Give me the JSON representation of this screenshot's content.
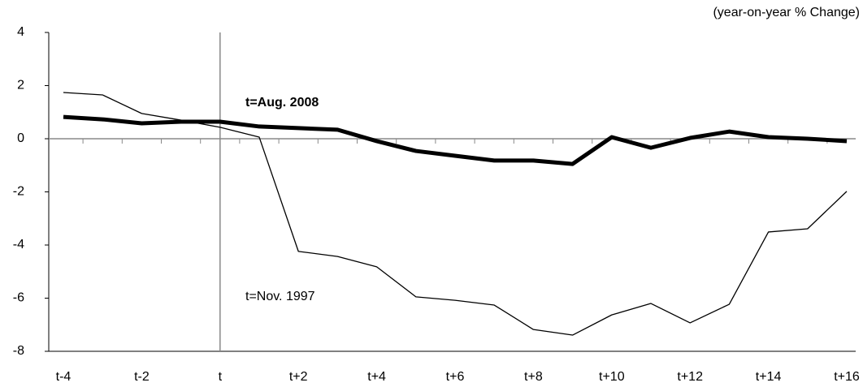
{
  "chart_data": {
    "type": "line",
    "unit_label": "(year-on-year % Change)",
    "categories": [
      "t-4",
      null,
      "t-2",
      null,
      "t",
      null,
      "t+2",
      null,
      "t+4",
      null,
      "t+6",
      null,
      "t+8",
      null,
      "t+10",
      null,
      "t+12",
      null,
      "t+14",
      null,
      "t+16"
    ],
    "series": [
      {
        "name": "t=Aug. 2008",
        "color": "#000000",
        "width": 5,
        "values": [
          0.82,
          0.73,
          0.58,
          0.64,
          0.64,
          0.46,
          0.4,
          0.34,
          -0.09,
          -0.46,
          -0.64,
          -0.82,
          -0.82,
          -0.95,
          0.06,
          -0.34,
          0.03,
          0.27,
          0.06,
          0,
          -0.09
        ]
      },
      {
        "name": "t=Nov. 1997",
        "color": "#000000",
        "width": 1.3,
        "values": [
          1.74,
          1.65,
          0.95,
          0.7,
          0.43,
          0.06,
          -4.24,
          -4.43,
          -4.82,
          -5.95,
          -6.08,
          -6.26,
          -7.18,
          -7.39,
          -6.63,
          -6.2,
          -6.93,
          -6.23,
          -3.51,
          -3.39,
          -1.98
        ]
      }
    ],
    "ylim": [
      -8,
      4
    ],
    "yticks": [
      -8,
      -6,
      -4,
      -2,
      0,
      2,
      4
    ],
    "grid": false
  }
}
